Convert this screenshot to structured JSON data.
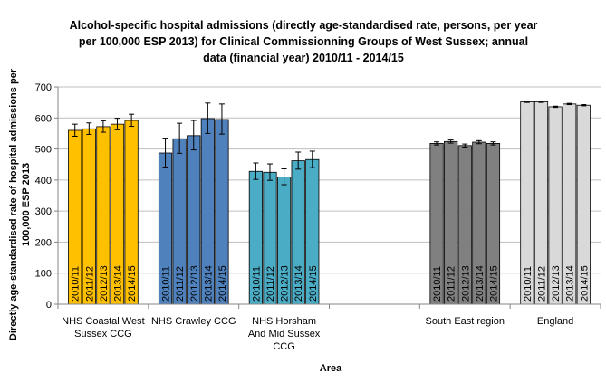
{
  "chart_data": {
    "type": "bar",
    "title": [
      "Alcohol-specific hospital admissions (directly age-standardised rate, persons, per year",
      "per 100,000  ESP 2013)  for Clinical Commissionning Groups of West Sussex; annual",
      "data  (financial year) 2010/11  - 2014/15"
    ],
    "xlabel": "Area",
    "ylabel": [
      "Directly age-standardised  rate of hospital admissions  per",
      "100,000  ESP 2013"
    ],
    "ylim": [
      0,
      700
    ],
    "yticks": [
      "0",
      "100",
      "200",
      "300",
      "400",
      "500",
      "600",
      "700"
    ],
    "grid": true,
    "legend": "none",
    "series_labels": [
      "2010/11",
      "2011/12",
      "2012/13",
      "2013/14",
      "2014/15"
    ],
    "groups": [
      {
        "name": [
          "NHS Coastal West",
          "Sussex CCG"
        ],
        "color": "#ffc000",
        "values": [
          560,
          565,
          572,
          580,
          592
        ],
        "lower": [
          541,
          547,
          554,
          562,
          573
        ],
        "upper": [
          580,
          584,
          591,
          599,
          612
        ]
      },
      {
        "name": [
          "NHS Crawley CCG"
        ],
        "color": "#4f81bd",
        "values": [
          487,
          533,
          543,
          598,
          595
        ],
        "lower": [
          442,
          486,
          497,
          550,
          548
        ],
        "upper": [
          535,
          583,
          592,
          648,
          645
        ]
      },
      {
        "name": [
          "NHS Horsham",
          "And Mid Sussex",
          "CCG"
        ],
        "color": "#4bacc6",
        "values": [
          428,
          425,
          410,
          462,
          466
        ],
        "lower": [
          402,
          399,
          385,
          435,
          440
        ],
        "upper": [
          455,
          452,
          436,
          490,
          493
        ]
      },
      {
        "name": [],
        "color": "#ffffff",
        "values": []
      },
      {
        "name": [
          "South East region"
        ],
        "color": "#808080",
        "values": [
          518,
          524,
          511,
          522,
          518
        ],
        "lower": [
          513,
          519,
          506,
          517,
          513
        ],
        "upper": [
          523,
          529,
          516,
          527,
          523
        ]
      },
      {
        "name": [
          "England"
        ],
        "color": "#d9d9d9",
        "values": [
          652,
          652,
          636,
          645,
          641
        ],
        "lower": [
          650,
          650,
          634,
          643,
          639
        ],
        "upper": [
          654,
          654,
          638,
          647,
          643
        ]
      }
    ]
  }
}
